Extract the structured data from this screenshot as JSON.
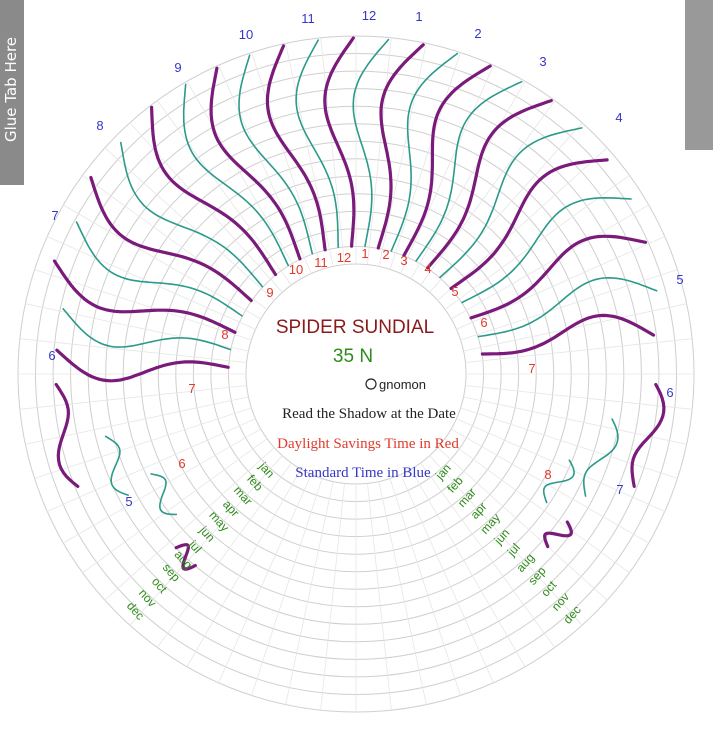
{
  "glue_tab_label": "Glue Tab Here",
  "title": "SPIDER SUNDIAL",
  "latitude": "35 N",
  "gnomon_label": "gnomon",
  "instructions": {
    "line1": "Read the Shadow at the Date",
    "line2": "Daylight Savings Time in Red",
    "line3": "Standard Time in Blue"
  },
  "colors": {
    "title": "#8b1a1a",
    "latitude": "#2e8b1a",
    "instruction_black": "#222222",
    "dst_red": "#e03a2a",
    "standard_blue": "#3636c8",
    "month_green": "#2e8b1a",
    "hour_line_purple": "#7a1a7a",
    "half_hour_line_teal": "#2a9a8a",
    "circle_gray": "#cfcfcf",
    "tab_gray": "#8a8a8a"
  },
  "standard_hours_outer": [
    "10",
    "11",
    "12",
    "1",
    "2",
    "3",
    "4"
  ],
  "standard_hours_left": [
    "9",
    "8",
    "7",
    "6",
    "5"
  ],
  "standard_hours_right": [
    "5",
    "6",
    "7"
  ],
  "dst_hours_inner": [
    "10",
    "11",
    "12",
    "1",
    "2",
    "3",
    "4",
    "5"
  ],
  "dst_hours_left": [
    "9",
    "8",
    "7",
    "6"
  ],
  "dst_hours_right": [
    "6",
    "7",
    "8"
  ],
  "months_left": [
    "jan",
    "feb",
    "mar",
    "apr",
    "may",
    "jun",
    "jul",
    "aug",
    "sep",
    "oct",
    "nov",
    "dec"
  ],
  "months_right": [
    "jan",
    "feb",
    "mar",
    "apr",
    "may",
    "jun",
    "jul",
    "aug",
    "sep",
    "oct",
    "nov",
    "dec"
  ]
}
